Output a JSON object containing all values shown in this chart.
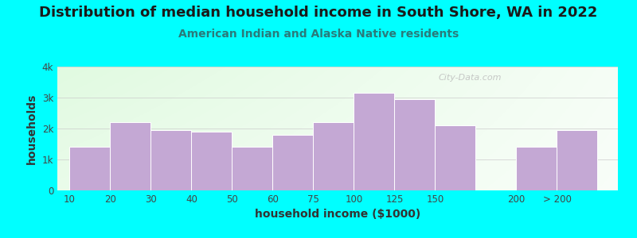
{
  "title": "Distribution of median household income in South Shore, WA in 2022",
  "subtitle": "American Indian and Alaska Native residents",
  "xlabel": "household income ($1000)",
  "ylabel": "households",
  "background_outer": "#00FFFF",
  "bar_color": "#C4A8D4",
  "categories": [
    "10",
    "20",
    "30",
    "40",
    "50",
    "60",
    "75",
    "100",
    "125",
    "150",
    "200",
    "> 200"
  ],
  "values": [
    1400,
    2200,
    1950,
    1900,
    1400,
    1800,
    2200,
    3150,
    2950,
    2100,
    1400,
    1950
  ],
  "bar_widths": [
    1,
    1,
    1,
    1,
    1,
    1,
    1,
    1,
    1,
    1,
    1,
    1
  ],
  "bar_lefts": [
    0,
    1,
    2,
    3,
    4,
    5,
    6,
    7,
    8,
    9,
    11,
    12
  ],
  "ylim": [
    0,
    4000
  ],
  "yticks": [
    0,
    1000,
    2000,
    3000,
    4000
  ],
  "ytick_labels": [
    "0",
    "1k",
    "2k",
    "3k",
    "4k"
  ],
  "watermark": "City-Data.com",
  "title_fontsize": 13,
  "subtitle_fontsize": 10,
  "axis_label_fontsize": 10,
  "tick_fontsize": 8.5,
  "title_color": "#1a1a1a",
  "subtitle_color": "#2a7a7a"
}
